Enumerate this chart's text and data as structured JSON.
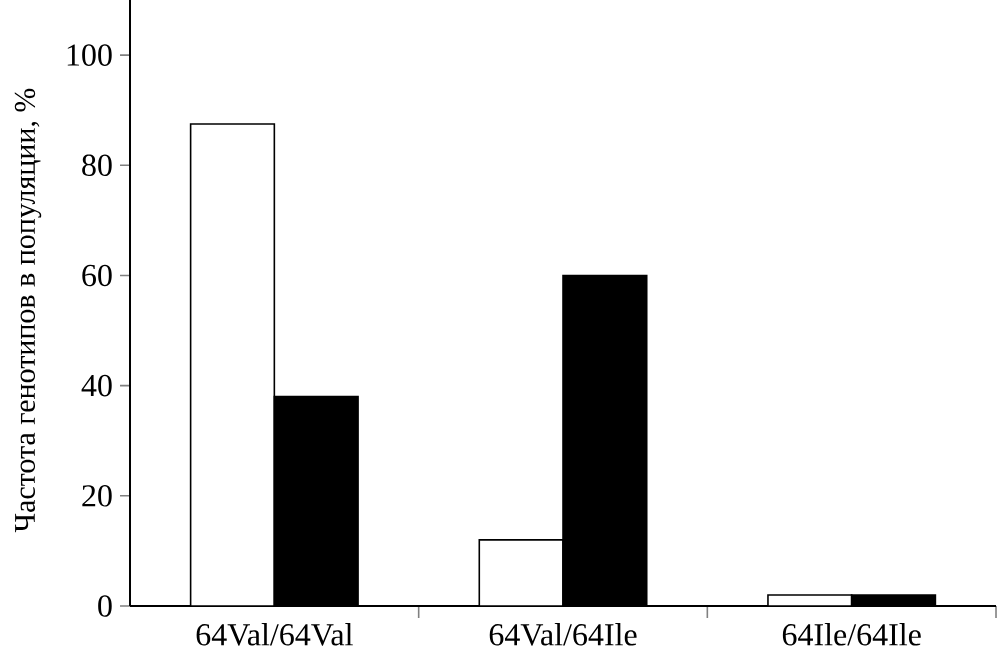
{
  "chart_data": {
    "type": "bar",
    "ylabel": "Частота генотипов в популяции, %",
    "categories": [
      "64Val/64Val",
      "64Val/64Ile",
      "64Ile/64Ile"
    ],
    "series": [
      {
        "color": "#ffffff",
        "values": [
          87.5,
          12,
          2
        ]
      },
      {
        "color": "#000000",
        "values": [
          38,
          60,
          2
        ]
      }
    ],
    "ylim": [
      0,
      110
    ],
    "yticks": [
      0,
      20,
      40,
      60,
      80,
      100
    ],
    "grid": false
  }
}
